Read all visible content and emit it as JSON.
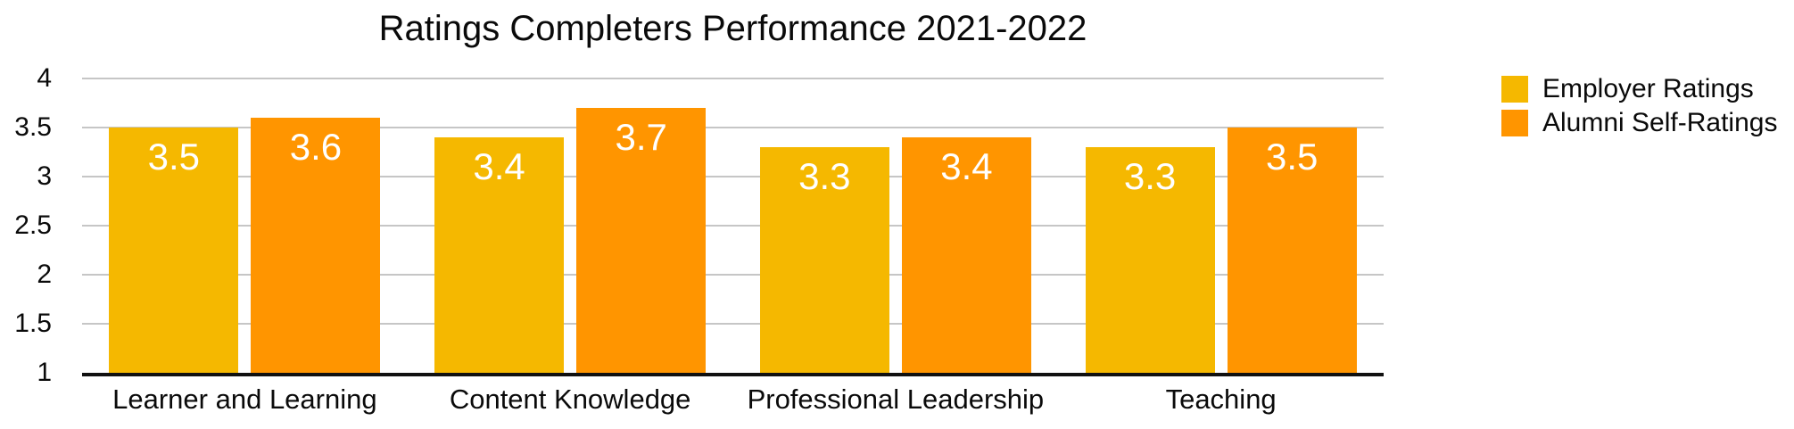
{
  "chart_data": {
    "type": "bar",
    "title": "Ratings Completers Performance 2021-2022",
    "categories": [
      "Learner and Learning",
      "Content Knowledge",
      "Professional Leadership",
      "Teaching"
    ],
    "series": [
      {
        "name": "Employer Ratings",
        "color": "#F5B800",
        "values": [
          3.5,
          3.4,
          3.3,
          3.3
        ]
      },
      {
        "name": "Alumni Self-Ratings",
        "color": "#FF9500",
        "values": [
          3.6,
          3.7,
          3.4,
          3.5
        ]
      }
    ],
    "ylim": [
      1,
      4
    ],
    "yticks": [
      4,
      3.5,
      3,
      2.5,
      2,
      1.5,
      1
    ],
    "xlabel": "",
    "ylabel": "",
    "grid": "horizontal",
    "gridline_color": "#c6c6c6",
    "baseline_color": "#111111",
    "legend_position": "top-right",
    "value_labels": "inside-top-white",
    "background": "#ffffff"
  }
}
